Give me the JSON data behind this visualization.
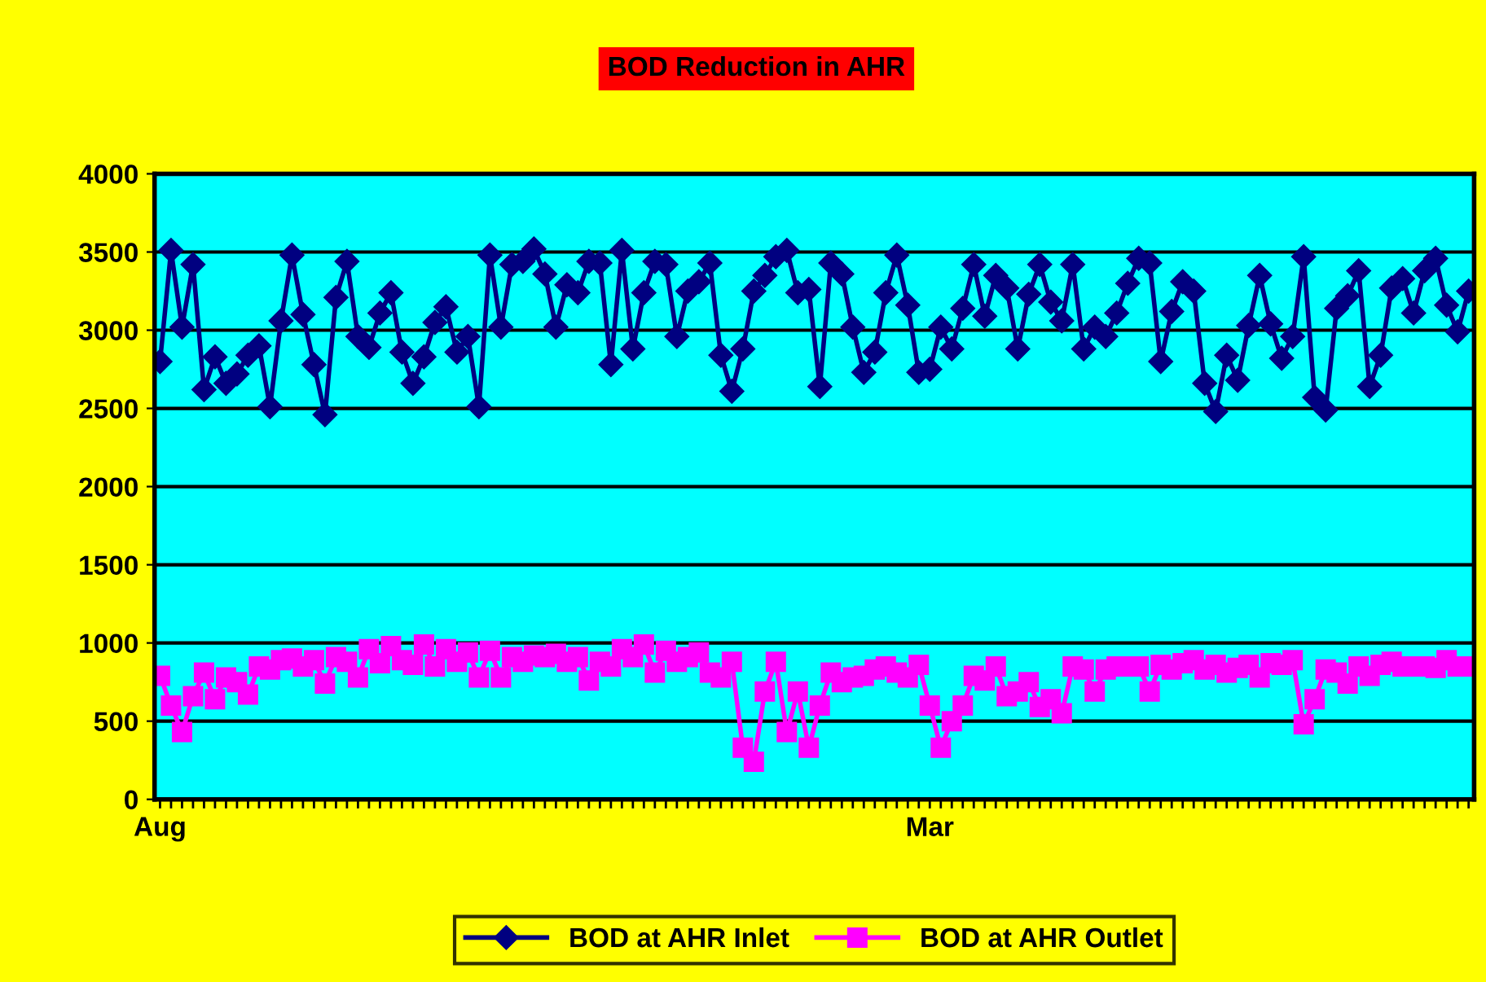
{
  "chart_data": {
    "type": "line",
    "title": "BOD Reduction in AHR",
    "categories": [
      "Aug",
      null,
      null,
      null,
      null,
      null,
      null,
      null,
      null,
      null,
      null,
      null,
      null,
      null,
      null,
      null,
      null,
      null,
      null,
      null,
      null,
      null,
      null,
      null,
      null,
      null,
      null,
      null,
      null,
      null,
      null,
      null,
      null,
      null,
      null,
      null,
      null,
      null,
      null,
      null,
      null,
      null,
      null,
      null,
      null,
      null,
      null,
      null,
      null,
      null,
      null,
      null,
      null,
      null,
      null,
      null,
      null,
      null,
      null,
      null,
      null,
      null,
      null,
      null,
      null,
      null,
      null,
      null,
      null,
      null,
      "Mar",
      null,
      null,
      null,
      null,
      null,
      null,
      null,
      null,
      null,
      null,
      null,
      null,
      null,
      null,
      null,
      null,
      null,
      null,
      null,
      null,
      null,
      null,
      null,
      null,
      null,
      null,
      null,
      null,
      null,
      null,
      null,
      null,
      null,
      null,
      null,
      null,
      null,
      null,
      null,
      null,
      null,
      null,
      null,
      null,
      null,
      null,
      null,
      null,
      null
    ],
    "series": [
      {
        "name": "BOD at AHR Inlet",
        "color": "#000080",
        "marker": "diamond",
        "values": [
          2800,
          3510,
          3020,
          3420,
          2620,
          2830,
          2660,
          2720,
          2840,
          2900,
          2510,
          3060,
          3480,
          3100,
          2780,
          2460,
          3210,
          3440,
          2960,
          2890,
          3110,
          3240,
          2860,
          2660,
          2830,
          3050,
          3150,
          2860,
          2960,
          2510,
          3480,
          3020,
          3420,
          3440,
          3520,
          3360,
          3020,
          3290,
          3240,
          3440,
          3430,
          2780,
          3510,
          2880,
          3240,
          3440,
          3420,
          2960,
          3250,
          3310,
          3430,
          2840,
          2610,
          2880,
          3250,
          3350,
          3470,
          3510,
          3240,
          3260,
          2640,
          3430,
          3360,
          3020,
          2730,
          2860,
          3240,
          3480,
          3160,
          2730,
          2750,
          3020,
          2880,
          3140,
          3420,
          3090,
          3350,
          3270,
          2880,
          3230,
          3420,
          3180,
          3060,
          3420,
          2880,
          3020,
          2960,
          3110,
          3300,
          3460,
          3430,
          2800,
          3120,
          3310,
          3250,
          2660,
          2480,
          2840,
          2680,
          3030,
          3350,
          3040,
          2820,
          2960,
          3470,
          2570,
          2490,
          3140,
          3220,
          3380,
          2640,
          2840,
          3270,
          3330,
          3110,
          3380,
          3460,
          3160,
          2990,
          3250
        ]
      },
      {
        "name": "BOD at AHR Outlet",
        "color": "#ff00ff",
        "marker": "square",
        "values": [
          790,
          600,
          430,
          660,
          810,
          640,
          780,
          750,
          670,
          850,
          830,
          890,
          900,
          850,
          890,
          740,
          910,
          880,
          780,
          960,
          870,
          980,
          890,
          860,
          990,
          850,
          960,
          880,
          940,
          780,
          950,
          780,
          910,
          880,
          920,
          910,
          930,
          880,
          910,
          760,
          880,
          850,
          960,
          910,
          990,
          810,
          950,
          880,
          910,
          940,
          810,
          780,
          880,
          330,
          240,
          690,
          880,
          430,
          690,
          330,
          600,
          810,
          750,
          780,
          790,
          830,
          850,
          810,
          780,
          860,
          600,
          330,
          500,
          600,
          790,
          760,
          850,
          660,
          690,
          750,
          590,
          640,
          550,
          850,
          830,
          690,
          830,
          850,
          850,
          850,
          690,
          860,
          830,
          870,
          890,
          830,
          860,
          810,
          840,
          860,
          780,
          870,
          860,
          890,
          480,
          640,
          830,
          810,
          740,
          850,
          790,
          860,
          880,
          850,
          850,
          850,
          840,
          890,
          850,
          850
        ]
      }
    ],
    "ylim": [
      0,
      4000
    ],
    "yticks": [
      0,
      500,
      1000,
      1500,
      2000,
      2500,
      3000,
      3500,
      4000
    ],
    "grid": "y",
    "legend": "bottom",
    "line_style": "solid"
  }
}
